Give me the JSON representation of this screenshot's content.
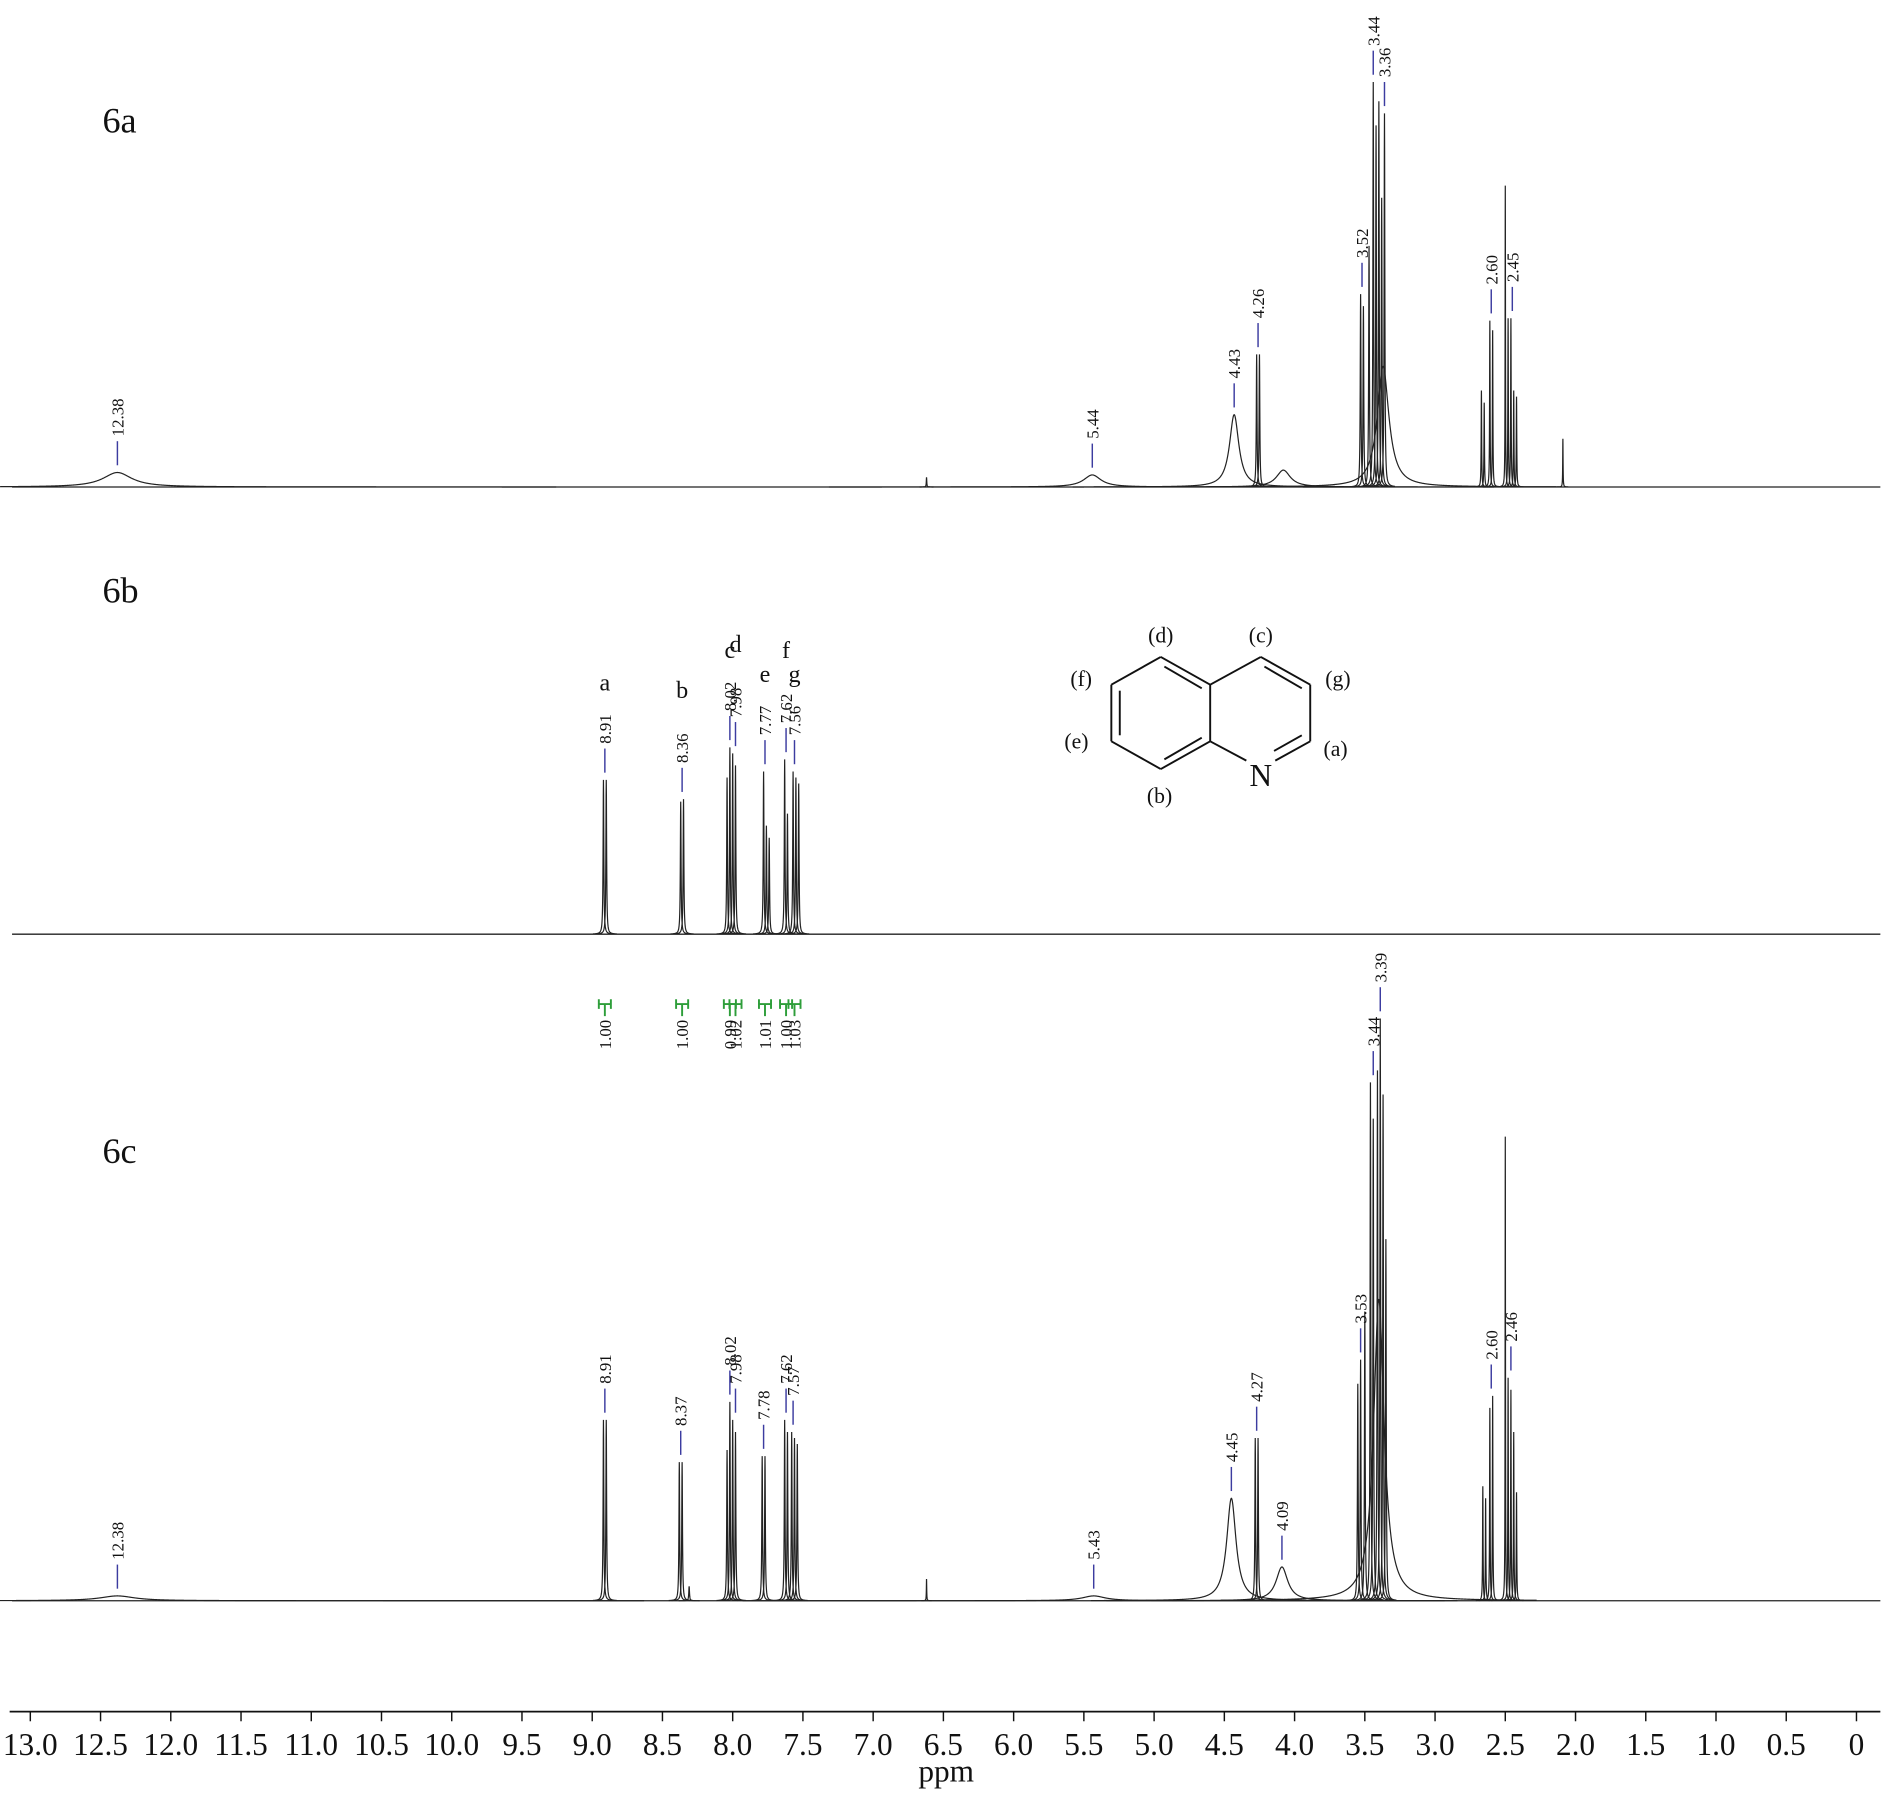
{
  "chart_data": {
    "type": "nmr",
    "x_label": "ppm",
    "xlim": [
      13.13,
      -0.17
    ],
    "xticks": [
      {
        "value": 13,
        "label": "13.0"
      },
      12.5,
      {
        "value": 12,
        "label": "12.0"
      },
      11.5,
      {
        "value": 11,
        "label": "11.0"
      },
      10.5,
      {
        "value": 10,
        "label": "10.0"
      },
      9.5,
      {
        "value": 9,
        "label": "9.0"
      },
      8.5,
      {
        "value": 8,
        "label": "8.0"
      },
      7.5,
      {
        "value": 7,
        "label": "7.0"
      },
      6.5,
      {
        "value": 6,
        "label": "6.0"
      },
      5.5,
      {
        "value": 5,
        "label": "5.0"
      },
      4.5,
      {
        "value": 4,
        "label": "4.0"
      },
      3.5,
      {
        "value": 3,
        "label": "3.0"
      },
      2.5,
      {
        "value": 2,
        "label": "2.0"
      },
      1.5,
      {
        "value": 1,
        "label": "1.0"
      },
      0.5,
      0
    ],
    "color": "#222222",
    "label_color": "#3c3ca0",
    "integral_color": "#2e9e3a",
    "spectra": [
      {
        "name": "6a",
        "peaks": {
          "x": [
            12.38,
            6.62,
            5.44,
            4.43,
            4.27,
            4.25,
            4.08,
            3.53,
            3.51,
            3.47,
            3.44,
            3.42,
            3.4,
            3.38,
            3.36,
            3.37,
            2.67,
            2.65,
            2.61,
            2.59,
            2.5,
            2.48,
            2.46,
            2.44,
            2.42,
            2.09
          ],
          "values": [
            12,
            8,
            10,
            60,
            110,
            110,
            14,
            160,
            150,
            200,
            336,
            300,
            320,
            240,
            310,
            100,
            80,
            70,
            138,
            130,
            250,
            140,
            140,
            80,
            75,
            40
          ],
          "linewidths": [
            0.25,
            0.004,
            0.15,
            0.08,
            0.006,
            0.006,
            0.12,
            0.006,
            0.006,
            0.006,
            0.006,
            0.006,
            0.006,
            0.006,
            0.006,
            0.1,
            0.004,
            0.004,
            0.004,
            0.004,
            0.003,
            0.004,
            0.004,
            0.004,
            0.004,
            0.003
          ]
        },
        "peak_labels": [
          12.38,
          5.44,
          4.43,
          4.26,
          3.52,
          3.44,
          3.36,
          {
            "value": 2.6,
            "label": "2.60"
          },
          2.45
        ]
      },
      {
        "name": "6b",
        "peaks": {
          "x": [
            8.92,
            8.9,
            8.37,
            8.35,
            8.04,
            8.02,
            8.0,
            7.98,
            7.78,
            7.76,
            7.74,
            7.63,
            7.61,
            7.57,
            7.55,
            7.53
          ],
          "values": [
            128,
            128,
            110,
            112,
            130,
            155,
            150,
            140,
            135,
            90,
            80,
            145,
            100,
            135,
            130,
            125
          ],
          "linewidths": [
            0.006,
            0.006,
            0.006,
            0.006,
            0.006,
            0.006,
            0.006,
            0.006,
            0.006,
            0.006,
            0.006,
            0.006,
            0.006,
            0.006,
            0.006,
            0.006
          ]
        },
        "peak_labels": [
          8.91,
          8.36,
          8.02,
          7.98,
          7.77,
          7.62,
          7.56
        ],
        "assignments": [
          "a",
          "b",
          "c",
          "d",
          "e",
          "f",
          "g"
        ],
        "integrals": [
          {
            "value": 1,
            "label": "1.00"
          },
          {
            "value": 1,
            "label": "1.00"
          },
          0.99,
          1.02,
          1.01,
          {
            "value": 1,
            "label": "1.00"
          },
          1.03
        ]
      },
      {
        "name": "6c",
        "peaks": {
          "x": [
            12.38,
            8.92,
            8.9,
            8.38,
            8.36,
            8.31,
            8.04,
            8.02,
            8.0,
            7.98,
            7.79,
            7.77,
            7.63,
            7.61,
            7.58,
            7.56,
            7.54,
            6.62,
            5.43,
            4.45,
            4.28,
            4.26,
            4.09,
            3.4,
            3.55,
            3.53,
            3.5,
            3.46,
            3.44,
            3.41,
            3.39,
            3.37,
            3.35,
            2.66,
            2.64,
            2.61,
            2.59,
            2.5,
            2.48,
            2.46,
            2.44,
            2.42
          ],
          "values": [
            4,
            150,
            150,
            115,
            115,
            12,
            125,
            165,
            150,
            140,
            120,
            120,
            150,
            140,
            140,
            135,
            130,
            18,
            4,
            85,
            135,
            135,
            28,
            250,
            180,
            200,
            240,
            430,
            400,
            440,
            483,
            420,
            300,
            95,
            85,
            160,
            170,
            385,
            185,
            175,
            140,
            90
          ],
          "linewidths": [
            0.3,
            0.006,
            0.006,
            0.006,
            0.006,
            0.006,
            0.006,
            0.006,
            0.006,
            0.006,
            0.006,
            0.006,
            0.006,
            0.006,
            0.006,
            0.006,
            0.006,
            0.003,
            0.2,
            0.08,
            0.006,
            0.006,
            0.1,
            0.09,
            0.006,
            0.006,
            0.006,
            0.006,
            0.006,
            0.006,
            0.006,
            0.006,
            0.006,
            0.004,
            0.004,
            0.004,
            0.004,
            0.003,
            0.004,
            0.004,
            0.004,
            0.004
          ]
        },
        "peak_labels": [
          12.38,
          8.91,
          8.37,
          8.02,
          7.98,
          7.78,
          7.62,
          7.57,
          5.43,
          4.45,
          4.27,
          4.09,
          3.53,
          3.44,
          3.39,
          {
            "value": 2.6,
            "label": "2.60"
          },
          2.46
        ]
      }
    ],
    "structure": {
      "atoms": [
        "(d)",
        "(c)",
        "(f)",
        "(g)",
        "(e)",
        "(a)",
        "(b)"
      ],
      "heteroatom": "N"
    }
  }
}
